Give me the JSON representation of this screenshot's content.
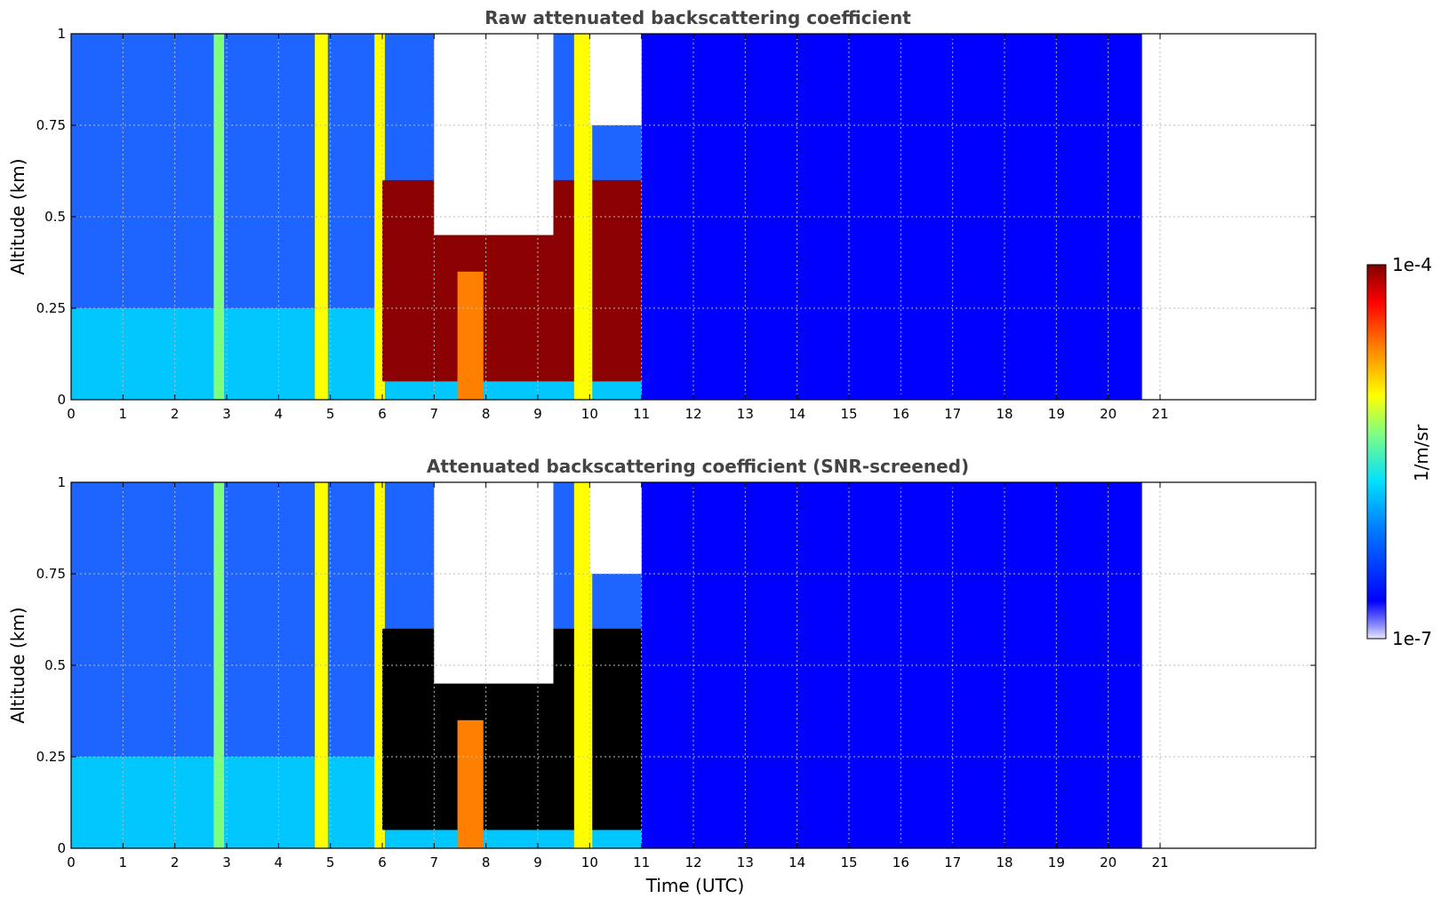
{
  "colors": {
    "very_low": "#0000ff",
    "low": "#1e64ff",
    "mid": "#00c8ff",
    "green": "#7fff7f",
    "yellow": "#ffff00",
    "orange": "#ff8000",
    "high": "#8b0000",
    "screened": "#000000",
    "missing": "#ffffff"
  },
  "chart_data": [
    {
      "type": "heatmap",
      "id": "raw",
      "title": "Raw attenuated backscattering coefficient",
      "xlabel": "",
      "ylabel": "Altitude (km)",
      "xlim": [
        0,
        24
      ],
      "ylim": [
        0,
        1
      ],
      "xticks": [
        "0",
        "1",
        "2",
        "3",
        "4",
        "5",
        "6",
        "7",
        "8",
        "9",
        "10",
        "11",
        "12",
        "13",
        "14",
        "15",
        "16",
        "17",
        "18",
        "19",
        "20",
        "21"
      ],
      "yticks": [
        "0",
        "0.25",
        "0.5",
        "0.75",
        "1"
      ],
      "grid": true,
      "data_end_time": 20.65,
      "features": [
        {
          "name": "background",
          "x": [
            0,
            20.65
          ],
          "y": [
            0,
            1
          ],
          "level": "low"
        },
        {
          "name": "surface-layer",
          "x": [
            0,
            11
          ],
          "y": [
            0,
            0.25
          ],
          "level": "mid"
        },
        {
          "name": "post-11-blue",
          "x": [
            11,
            20.65
          ],
          "y": [
            0,
            1
          ],
          "level": "very_low"
        },
        {
          "name": "band-2.9",
          "x": [
            2.75,
            2.95
          ],
          "y": [
            0,
            1
          ],
          "level": "green"
        },
        {
          "name": "band-4.8",
          "x": [
            4.7,
            4.95
          ],
          "y": [
            0,
            1
          ],
          "level": "yellow"
        },
        {
          "name": "band-5.9",
          "x": [
            5.85,
            6.05
          ],
          "y": [
            0,
            1
          ],
          "level": "yellow"
        },
        {
          "name": "cloud-6-11",
          "x": [
            6.0,
            11.0
          ],
          "y": [
            0.05,
            0.6
          ],
          "level": "high"
        },
        {
          "name": "band-7.7",
          "x": [
            7.45,
            7.95
          ],
          "y": [
            0,
            0.35
          ],
          "level": "orange"
        },
        {
          "name": "band-9.9",
          "x": [
            9.7,
            10.05
          ],
          "y": [
            0,
            1
          ],
          "level": "yellow"
        },
        {
          "name": "missing-upper",
          "x": [
            7.0,
            9.3
          ],
          "y": [
            0.45,
            1
          ],
          "level": "missing"
        },
        {
          "name": "missing-upper-2",
          "x": [
            10.0,
            11.0
          ],
          "y": [
            0.75,
            1
          ],
          "level": "missing"
        }
      ]
    },
    {
      "type": "heatmap",
      "id": "snr",
      "title": "Attenuated backscattering coefficient (SNR-screened)",
      "xlabel": "Time (UTC)",
      "ylabel": "Altitude (km)",
      "xlim": [
        0,
        24
      ],
      "ylim": [
        0,
        1
      ],
      "xticks": [
        "0",
        "1",
        "2",
        "3",
        "4",
        "5",
        "6",
        "7",
        "8",
        "9",
        "10",
        "11",
        "12",
        "13",
        "14",
        "15",
        "16",
        "17",
        "18",
        "19",
        "20",
        "21"
      ],
      "yticks": [
        "0",
        "0.25",
        "0.5",
        "0.75",
        "1"
      ],
      "grid": true,
      "data_end_time": 20.65,
      "features": [
        {
          "name": "background",
          "x": [
            0,
            20.65
          ],
          "y": [
            0,
            1
          ],
          "level": "low"
        },
        {
          "name": "surface-layer",
          "x": [
            0,
            11
          ],
          "y": [
            0,
            0.25
          ],
          "level": "mid"
        },
        {
          "name": "post-11-blue",
          "x": [
            11,
            20.65
          ],
          "y": [
            0,
            1
          ],
          "level": "very_low"
        },
        {
          "name": "band-2.9",
          "x": [
            2.75,
            2.95
          ],
          "y": [
            0,
            1
          ],
          "level": "green"
        },
        {
          "name": "band-4.8",
          "x": [
            4.7,
            4.95
          ],
          "y": [
            0,
            1
          ],
          "level": "yellow"
        },
        {
          "name": "band-5.9",
          "x": [
            5.85,
            6.05
          ],
          "y": [
            0,
            1
          ],
          "level": "yellow"
        },
        {
          "name": "cloud-6-11",
          "x": [
            6.0,
            11.0
          ],
          "y": [
            0.05,
            0.6
          ],
          "level": "screened"
        },
        {
          "name": "band-7.7",
          "x": [
            7.45,
            7.95
          ],
          "y": [
            0,
            0.35
          ],
          "level": "orange"
        },
        {
          "name": "band-9.9",
          "x": [
            9.7,
            10.05
          ],
          "y": [
            0,
            1
          ],
          "level": "yellow"
        },
        {
          "name": "missing-upper",
          "x": [
            7.0,
            9.3
          ],
          "y": [
            0.45,
            1
          ],
          "level": "missing"
        },
        {
          "name": "missing-upper-2",
          "x": [
            10.0,
            11.0
          ],
          "y": [
            0.75,
            1
          ],
          "level": "missing"
        }
      ]
    }
  ],
  "colorbar": {
    "label": "1/m/sr",
    "max_label": "1e-4",
    "min_label": "1e-7",
    "range": [
      1e-07,
      0.0001
    ],
    "scale": "log"
  }
}
